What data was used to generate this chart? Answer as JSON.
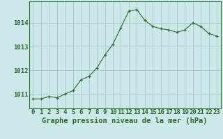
{
  "x": [
    0,
    1,
    2,
    3,
    4,
    5,
    6,
    7,
    8,
    9,
    10,
    11,
    12,
    13,
    14,
    15,
    16,
    17,
    18,
    19,
    20,
    21,
    22,
    23
  ],
  "y": [
    1010.8,
    1010.8,
    1010.9,
    1010.85,
    1011.0,
    1011.15,
    1011.6,
    1011.75,
    1012.1,
    1012.65,
    1013.1,
    1013.8,
    1014.5,
    1014.55,
    1014.1,
    1013.85,
    1013.75,
    1013.7,
    1013.6,
    1013.7,
    1014.0,
    1013.85,
    1013.55,
    1013.45
  ],
  "line_color": "#2d6a2d",
  "marker": "+",
  "bg_color": "#cce8e8",
  "grid_color": "#aacccc",
  "xlabel": "Graphe pression niveau de la mer (hPa)",
  "xlabel_fontsize": 7.5,
  "ylabel_ticks": [
    1011,
    1012,
    1013,
    1014
  ],
  "ylim": [
    1010.4,
    1014.9
  ],
  "xlim": [
    -0.5,
    23.5
  ],
  "tick_fontsize": 6.5,
  "border_color": "#2d6a2d",
  "xlabel_color": "#2d6a2d"
}
